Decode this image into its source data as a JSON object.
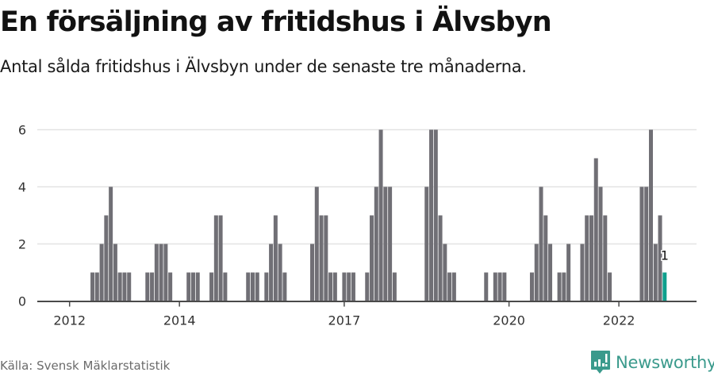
{
  "header": {
    "title": "En försäljning av fritidshus i Älvsbyn",
    "subtitle": "Antal sålda fritidshus i Älvsbyn under de senaste tre månaderna."
  },
  "footer": {
    "source": "Källa: Svensk Mäklarstatistik",
    "brand": "Newsworthy",
    "brand_icon": "newsworthy-logo-icon"
  },
  "colors": {
    "bar": "#706f75",
    "highlight": "#0fa08d",
    "grid": "#e3e3e3",
    "axis": "#4a4a4a",
    "brand": "#3a9a8c"
  },
  "chart_data": {
    "type": "bar",
    "title": "En försäljning av fritidshus i Älvsbyn",
    "subtitle": "Antal sålda fritidshus i Älvsbyn under de senaste tre månaderna.",
    "xlabel": "",
    "ylabel": "",
    "ylim": [
      0,
      6
    ],
    "yticks": [
      0,
      2,
      4,
      6
    ],
    "xticks": [
      "2012",
      "2014",
      "2017",
      "2020",
      "2022"
    ],
    "grid": true,
    "legend": null,
    "start": "2012-01",
    "frequency": "monthly",
    "highlight_last": true,
    "annotation": {
      "label": "1",
      "period": "2022-11"
    },
    "values_by_year": {
      "2012": [
        0,
        0,
        0,
        0,
        0,
        1,
        1,
        2,
        3,
        4,
        2,
        1
      ],
      "2013": [
        1,
        1,
        0,
        0,
        0,
        1,
        1,
        2,
        2,
        2,
        1,
        0
      ],
      "2014": [
        0,
        0,
        1,
        1,
        1,
        0,
        0,
        1,
        3,
        3,
        1,
        0
      ],
      "2015": [
        0,
        0,
        0,
        1,
        1,
        1,
        0,
        1,
        2,
        3,
        2,
        1
      ],
      "2016": [
        0,
        0,
        0,
        0,
        0,
        2,
        4,
        3,
        3,
        1,
        1,
        0
      ],
      "2017": [
        1,
        1,
        1,
        0,
        0,
        1,
        3,
        4,
        6,
        4,
        4,
        1
      ],
      "2018": [
        0,
        0,
        0,
        0,
        0,
        0,
        4,
        6,
        6,
        3,
        2,
        1
      ],
      "2019": [
        1,
        0,
        0,
        0,
        0,
        0,
        0,
        1,
        0,
        1,
        1,
        1
      ],
      "2020": [
        0,
        0,
        0,
        0,
        0,
        1,
        2,
        4,
        3,
        2,
        0,
        1
      ],
      "2021": [
        1,
        2,
        0,
        0,
        2,
        3,
        3,
        5,
        4,
        3,
        1,
        0
      ],
      "2022": [
        0,
        0,
        0,
        0,
        0,
        4,
        4,
        6,
        2,
        3,
        1
      ]
    }
  }
}
